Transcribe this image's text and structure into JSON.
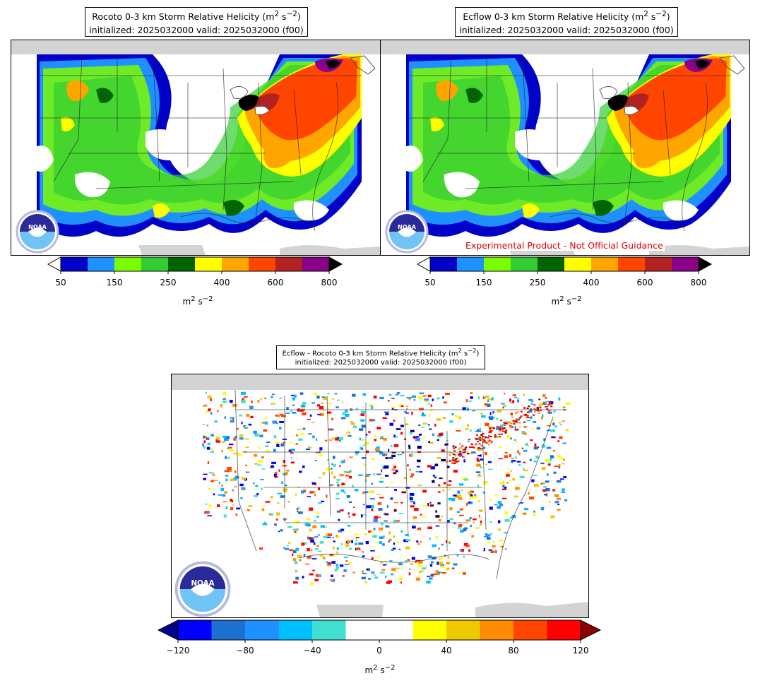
{
  "panels": [
    {
      "id": "rocoto",
      "title_line1": "Rocoto 0-3 km Storm Relative Helicity (m",
      "title_line2": "initialized: 2025032000 valid: 2025032000 (f00)",
      "cbar_unit": "m² s⁻²",
      "disclaimer": ""
    },
    {
      "id": "ecflow",
      "title_line1": "Ecflow 0-3 km Storm Relative Helicity (m",
      "title_line2": "initialized: 2025032000 valid: 2025032000 (f00)",
      "cbar_unit": "m² s⁻²",
      "disclaimer": "Experimental Product - Not Official Guidance"
    },
    {
      "id": "difference",
      "title_line1": "Ecflow - Rocoto 0-3 km Storm Relative Helicity (m",
      "title_line2": "initialized: 2025032000 valid: 2025032000 (f00)",
      "cbar_unit": "m² s⁻²",
      "disclaimer": ""
    }
  ],
  "title_units_sup": {
    "m_sup": "2",
    "s": " s",
    "s_sup": "−2",
    "close": ")"
  },
  "logo_text": "NOAA",
  "srh_colorbar": {
    "ticks": [
      "50",
      "150",
      "250",
      "400",
      "600",
      "800"
    ],
    "colors": [
      "#0000c8",
      "#1e90ff",
      "#7cfc00",
      "#32cd32",
      "#006400",
      "#ffff00",
      "#ffa500",
      "#ff4500",
      "#b22222",
      "#8b008b"
    ],
    "extend_low": "#ffffff",
    "extend_high": "#000000"
  },
  "diff_colorbar": {
    "ticks": [
      "−120",
      "−80",
      "−40",
      "0",
      "40",
      "80",
      "120"
    ],
    "colors": [
      "#0000ff",
      "#1e70d0",
      "#1e90ff",
      "#00bfff",
      "#40e0d0",
      "#ffffff",
      "#ffffff",
      "#ffff00",
      "#eec900",
      "#ff8c00",
      "#ff4500",
      "#ff0000"
    ],
    "extend_low": "#00008b",
    "extend_high": "#8b0000"
  }
}
